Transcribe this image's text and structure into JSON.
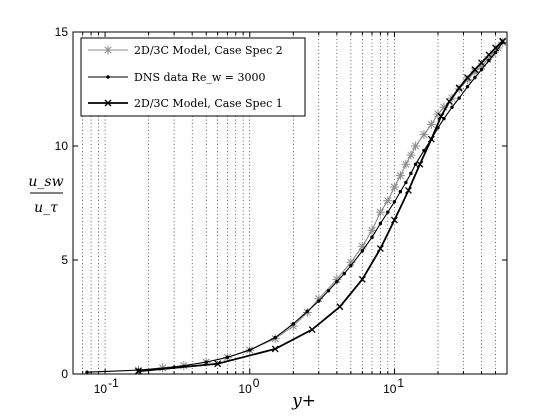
{
  "chart_data": {
    "type": "line",
    "xscale": "log",
    "xlim": [
      0.06,
      60
    ],
    "ylim": [
      0,
      15
    ],
    "xlabel": "y+",
    "ylabel": "u_sw / u_τ",
    "grid": "x-minor-dotted",
    "legend_position": "top-left",
    "y_ticks": [
      {
        "value": 0,
        "label": "0"
      },
      {
        "value": 5,
        "label": "5"
      },
      {
        "value": 10,
        "label": "10"
      },
      {
        "value": 15,
        "label": "15"
      }
    ],
    "x_ticks": [
      {
        "value": 0.1,
        "base": "10",
        "exp": "-1"
      },
      {
        "value": 1,
        "base": "10",
        "exp": "0"
      },
      {
        "value": 10,
        "base": "10",
        "exp": "1"
      }
    ],
    "series": [
      {
        "name": "2D/3C Model, Case Spec 2",
        "color": "#8c8c8c",
        "marker": "asterisk",
        "points": [
          [
            0.17,
            0.17
          ],
          [
            0.25,
            0.27
          ],
          [
            0.35,
            0.37
          ],
          [
            0.5,
            0.52
          ],
          [
            0.7,
            0.73
          ],
          [
            1.0,
            1.05
          ],
          [
            1.5,
            1.55
          ],
          [
            2.0,
            2.1
          ],
          [
            2.5,
            2.7
          ],
          [
            3.0,
            3.3
          ],
          [
            4.0,
            4.15
          ],
          [
            5.0,
            4.9
          ],
          [
            6.0,
            5.6
          ],
          [
            7.0,
            6.3
          ],
          [
            8.0,
            7.1
          ],
          [
            9.0,
            7.6
          ],
          [
            10.0,
            8.2
          ],
          [
            11.0,
            8.7
          ],
          [
            12.0,
            9.2
          ],
          [
            13.0,
            9.6
          ],
          [
            14.0,
            10.0
          ],
          [
            16.0,
            10.5
          ],
          [
            18.0,
            10.95
          ],
          [
            20.0,
            11.4
          ],
          [
            22.0,
            11.7
          ],
          [
            25.0,
            12.1
          ],
          [
            28.0,
            12.5
          ],
          [
            32.0,
            12.9
          ],
          [
            36.0,
            13.25
          ],
          [
            40.0,
            13.5
          ],
          [
            44.0,
            13.8
          ],
          [
            48.0,
            14.05
          ],
          [
            52.0,
            14.3
          ],
          [
            56.0,
            14.55
          ]
        ]
      },
      {
        "name": "DNS data Re_w = 3000",
        "color": "#000000",
        "marker": "dot",
        "points": [
          [
            0.075,
            0.08
          ],
          [
            0.17,
            0.17
          ],
          [
            0.3,
            0.3
          ],
          [
            0.5,
            0.52
          ],
          [
            0.7,
            0.73
          ],
          [
            1.0,
            1.05
          ],
          [
            1.5,
            1.6
          ],
          [
            2.0,
            2.2
          ],
          [
            2.5,
            2.75
          ],
          [
            3.0,
            3.2
          ],
          [
            3.5,
            3.65
          ],
          [
            4.0,
            4.05
          ],
          [
            4.5,
            4.4
          ],
          [
            5.0,
            4.75
          ],
          [
            6.0,
            5.4
          ],
          [
            7.0,
            6.0
          ],
          [
            8.0,
            6.6
          ],
          [
            9.0,
            7.1
          ],
          [
            10.0,
            7.55
          ],
          [
            11.0,
            8.0
          ],
          [
            12.0,
            8.4
          ],
          [
            13.0,
            8.8
          ],
          [
            14.0,
            9.2
          ],
          [
            16.0,
            9.8
          ],
          [
            18.0,
            10.3
          ],
          [
            20.0,
            10.8
          ],
          [
            22.0,
            11.2
          ],
          [
            25.0,
            11.7
          ],
          [
            28.0,
            12.1
          ],
          [
            32.0,
            12.6
          ],
          [
            36.0,
            13.0
          ],
          [
            40.0,
            13.35
          ],
          [
            45.0,
            13.75
          ],
          [
            50.0,
            14.1
          ],
          [
            56.0,
            14.55
          ]
        ]
      },
      {
        "name": "2D/3C Model, Case Spec 1",
        "color": "#000000",
        "marker": "x",
        "points": [
          [
            0.17,
            0.12
          ],
          [
            0.6,
            0.45
          ],
          [
            1.5,
            1.1
          ],
          [
            2.7,
            1.95
          ],
          [
            4.2,
            2.95
          ],
          [
            6.0,
            4.15
          ],
          [
            8.0,
            5.5
          ],
          [
            10.0,
            6.75
          ],
          [
            12.5,
            8.05
          ],
          [
            15.0,
            9.2
          ],
          [
            18.0,
            10.3
          ],
          [
            21.0,
            11.3
          ],
          [
            24.0,
            11.95
          ],
          [
            28.0,
            12.55
          ],
          [
            32.0,
            13.0
          ],
          [
            36.0,
            13.35
          ],
          [
            40.0,
            13.65
          ],
          [
            45.0,
            14.0
          ],
          [
            50.0,
            14.3
          ],
          [
            56.0,
            14.6
          ]
        ]
      }
    ]
  }
}
